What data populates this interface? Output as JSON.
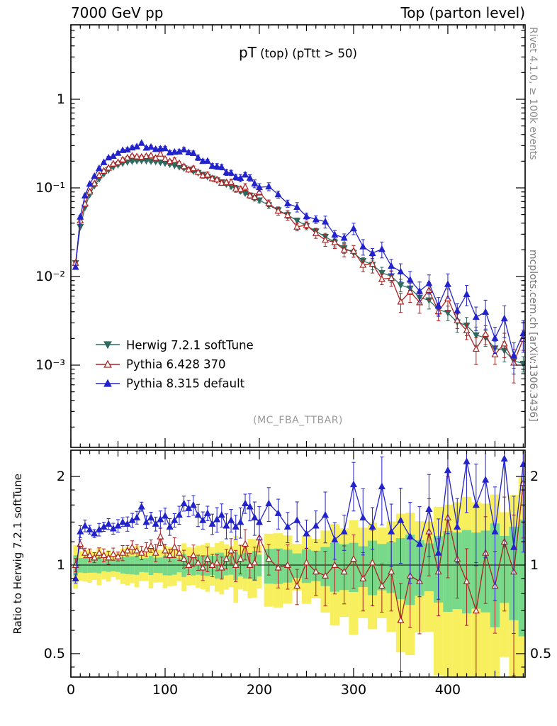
{
  "header": {
    "left": "7000 GeV pp",
    "right": "Top (parton level)"
  },
  "title": {
    "prefix": "pT",
    "rest": " (top) (pTtt > 50)"
  },
  "watermark": "(MC_FBA_TTBAR)",
  "side_labels": {
    "rivet": "Rivet 4.1.0, ≥ 100k events",
    "mcplots": "mcplots.cern.ch [arXiv:1306.3436]"
  },
  "ratio_ylabel": "Ratio to Herwig 7.2.1 softTune",
  "legend": [
    {
      "label": "Herwig 7.2.1 softTune",
      "color": "#2e6a5e",
      "marker": "down",
      "fill": "solid"
    },
    {
      "label": "Pythia 6.428 370",
      "color": "#aa2222",
      "marker": "up",
      "fill": "open"
    },
    {
      "label": "Pythia 8.315 default",
      "color": "#2323cc",
      "marker": "up",
      "fill": "solid"
    }
  ],
  "colors": {
    "band_green": "#79d98b",
    "band_yellow": "#f7ef5e",
    "frame": "#000000",
    "reference_line": "#000000"
  },
  "chart_data": {
    "type": "line",
    "title": "pT (top) (pTtt > 50)",
    "xlabel": "",
    "ylabel": "",
    "ratio_label": "Ratio to Herwig 7.2.1 softTune",
    "xlim": [
      0,
      482
    ],
    "main_ylim": [
      0.00012,
      6.9
    ],
    "ratio_ylim": [
      0.417,
      2.45
    ],
    "x_ticks": [
      0,
      100,
      200,
      300,
      400
    ],
    "y_ticks_main": [
      {
        "value": 1,
        "label": "1"
      },
      {
        "value": 0.1,
        "label": "10⁻¹"
      },
      {
        "value": 0.01,
        "label": "10⁻²"
      },
      {
        "value": 0.001,
        "label": "10⁻³"
      }
    ],
    "y_ticks_ratio": [
      {
        "value": 2,
        "label": "2"
      },
      {
        "value": 1,
        "label": "1"
      },
      {
        "value": 0.5,
        "label": "0.5"
      }
    ],
    "x": [
      5,
      10,
      15,
      20,
      25,
      30,
      35,
      40,
      45,
      50,
      55,
      60,
      65,
      70,
      75,
      80,
      85,
      90,
      95,
      100,
      105,
      110,
      115,
      120,
      125,
      130,
      135,
      140,
      145,
      150,
      155,
      160,
      165,
      170,
      175,
      180,
      185,
      190,
      195,
      200,
      210,
      220,
      230,
      240,
      250,
      260,
      270,
      280,
      290,
      300,
      310,
      320,
      330,
      340,
      350,
      360,
      370,
      380,
      390,
      400,
      410,
      420,
      430,
      440,
      450,
      460,
      470,
      480
    ],
    "series": [
      {
        "name": "Herwig 7.2.1 softTune",
        "values": [
          0.0142,
          0.0363,
          0.0602,
          0.0839,
          0.106,
          0.126,
          0.144,
          0.159,
          0.172,
          0.182,
          0.19,
          0.196,
          0.2,
          0.202,
          0.203,
          0.202,
          0.2,
          0.198,
          0.194,
          0.19,
          0.185,
          0.179,
          0.173,
          0.167,
          0.161,
          0.154,
          0.148,
          0.141,
          0.134,
          0.128,
          0.122,
          0.116,
          0.11,
          0.104,
          0.098,
          0.0923,
          0.087,
          0.0821,
          0.077,
          0.0725,
          0.0639,
          0.0562,
          0.0493,
          0.0428,
          0.0373,
          0.0324,
          0.0281,
          0.0243,
          0.021,
          0.0185,
          0.015,
          0.0136,
          0.011,
          0.0101,
          0.008,
          0.00735,
          0.0058,
          0.0054,
          0.00425,
          0.0039,
          0.00305,
          0.0028,
          0.00218,
          0.00204,
          0.00155,
          0.00146,
          0.00112,
          0.00104
        ]
      },
      {
        "name": "Pythia 6.428 370",
        "ratio_to_herwig": [
          1.0,
          1.18,
          1.1,
          1.08,
          1.06,
          1.1,
          1.08,
          1.06,
          1.09,
          1.07,
          1.1,
          1.12,
          1.15,
          1.12,
          1.1,
          1.13,
          1.16,
          1.1,
          1.25,
          1.12,
          1.08,
          1.15,
          1.1,
          1.05,
          1.0,
          1.08,
          1.02,
          0.98,
          1.05,
          1.0,
          1.02,
          0.98,
          1.05,
          1.12,
          1.0,
          1.05,
          1.18,
          1.0,
          1.02,
          1.24,
          1.05,
          0.98,
          1.0,
          0.85,
          1.02,
          0.95,
          0.92,
          1.0,
          0.95,
          1.05,
          0.9,
          1.02,
          0.85,
          0.95,
          0.65,
          0.92,
          0.88,
          1.3,
          0.95,
          1.45,
          1.05,
          0.88,
          0.7,
          1.1,
          0.85,
          1.2,
          0.95,
          1.9
        ]
      },
      {
        "name": "Pythia 8.315 default",
        "ratio_to_herwig": [
          0.9,
          1.3,
          1.36,
          1.32,
          1.28,
          1.32,
          1.35,
          1.38,
          1.33,
          1.36,
          1.4,
          1.38,
          1.42,
          1.45,
          1.58,
          1.4,
          1.45,
          1.38,
          1.43,
          1.47,
          1.35,
          1.42,
          1.48,
          1.62,
          1.56,
          1.6,
          1.48,
          1.42,
          1.5,
          1.38,
          1.43,
          1.48,
          1.36,
          1.42,
          1.35,
          1.4,
          1.62,
          1.58,
          1.45,
          1.4,
          1.62,
          1.5,
          1.35,
          1.42,
          1.28,
          1.36,
          1.48,
          1.22,
          1.3,
          1.88,
          1.45,
          1.35,
          1.85,
          1.3,
          1.42,
          1.25,
          1.18,
          1.55,
          1.1,
          2.1,
          1.35,
          2.25,
          1.6,
          1.95,
          1.3,
          2.3,
          1.15,
          2.2
        ]
      }
    ],
    "error_model": {
      "rel_err_base": 0.025,
      "rel_err_quad": 1.1e-06
    },
    "bands": {
      "green_meaning": "Herwig stat. uncertainty",
      "yellow_meaning": "2x uncertainty",
      "legend_position": "upper-left-inside"
    }
  }
}
